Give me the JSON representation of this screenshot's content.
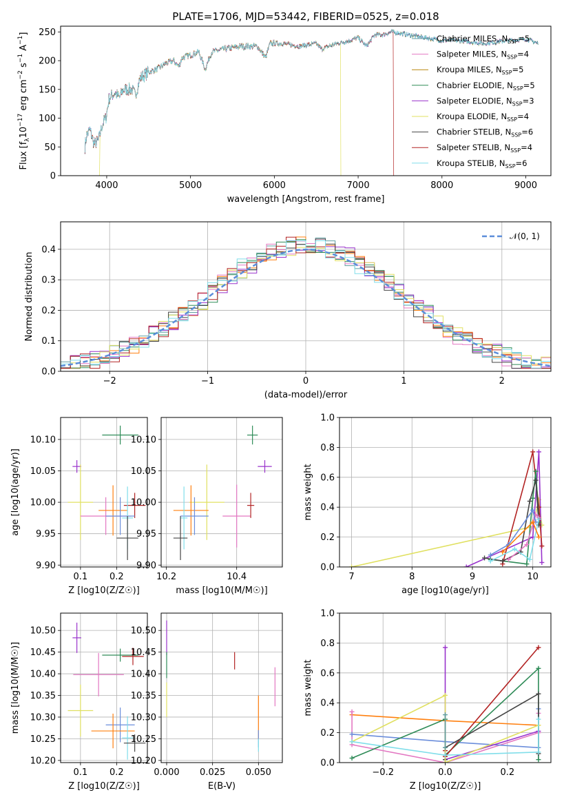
{
  "figure_title": "PLATE=1706, MJD=53442, FIBERID=0525, z=0.018",
  "series_colors": {
    "Chabrier MILES": "#5f9ea0",
    "Salpeter MILES": "#e377c2",
    "Kroupa MILES": "#b8860b",
    "Chabrier ELODIE": "#2e8b57",
    "Salpeter ELODIE": "#9932cc",
    "Kroupa ELODIE": "#e0e060",
    "Chabrier STELIB": "#444444",
    "Salpeter STELIB": "#b22222",
    "Kroupa STELIB": "#80deea"
  },
  "chart_data": [
    {
      "id": "spectrum",
      "type": "line",
      "title": "PLATE=1706, MJD=53442, FIBERID=0525, z=0.018",
      "xlabel": "wavelength [Angstrom, rest frame]",
      "ylabel": "Flux [f_λ 10^-17 erg cm^-2 s^-1 A^-1]",
      "ylabel_main": "Flux [f",
      "ylabel_tail": "10",
      "ylabel_units": " erg cm",
      "ylabel_end": " s",
      "ylabel_a": " A",
      "xlim": [
        3450,
        9300
      ],
      "ylim": [
        0,
        260
      ],
      "xticks": [
        4000,
        5000,
        6000,
        7000,
        8000,
        9000
      ],
      "yticks": [
        0,
        50,
        100,
        150,
        200,
        250
      ],
      "legend_position": "right",
      "legend": [
        {
          "label": "Chabrier MILES, N",
          "n": "=5",
          "color": "#5f9ea0"
        },
        {
          "label": "Salpeter MILES, N",
          "n": "=4",
          "color": "#e377c2"
        },
        {
          "label": "Kroupa MILES, N",
          "n": "=5",
          "color": "#b8860b"
        },
        {
          "label": "Chabrier ELODIE, N",
          "n": "=5",
          "color": "#2e8b57"
        },
        {
          "label": "Salpeter ELODIE, N",
          "n": "=3",
          "color": "#9932cc"
        },
        {
          "label": "Kroupa ELODIE, N",
          "n": "=4",
          "color": "#e0e060"
        },
        {
          "label": "Chabrier STELIB, N",
          "n": "=6",
          "color": "#444444"
        },
        {
          "label": "Salpeter STELIB, N",
          "n": "=4",
          "color": "#b22222"
        },
        {
          "label": "Kroupa STELIB, N",
          "n": "=6",
          "color": "#80deea"
        }
      ],
      "spectrum_anchor_points": [
        [
          3740,
          50
        ],
        [
          3760,
          70
        ],
        [
          3800,
          80
        ],
        [
          3850,
          55
        ],
        [
          3900,
          60
        ],
        [
          3950,
          90
        ],
        [
          3990,
          100
        ],
        [
          4030,
          135
        ],
        [
          4100,
          145
        ],
        [
          4150,
          135
        ],
        [
          4200,
          150
        ],
        [
          4300,
          150
        ],
        [
          4340,
          140
        ],
        [
          4400,
          170
        ],
        [
          4500,
          180
        ],
        [
          4600,
          185
        ],
        [
          4700,
          195
        ],
        [
          4800,
          200
        ],
        [
          4860,
          190
        ],
        [
          4900,
          205
        ],
        [
          5000,
          210
        ],
        [
          5100,
          215
        ],
        [
          5175,
          185
        ],
        [
          5250,
          215
        ],
        [
          5400,
          220
        ],
        [
          5600,
          225
        ],
        [
          5800,
          225
        ],
        [
          5895,
          205
        ],
        [
          5950,
          230
        ],
        [
          6100,
          230
        ],
        [
          6300,
          225
        ],
        [
          6500,
          230
        ],
        [
          6563,
          220
        ],
        [
          6700,
          228
        ],
        [
          6900,
          235
        ],
        [
          7000,
          240
        ],
        [
          7100,
          225
        ],
        [
          7200,
          245
        ],
        [
          7300,
          245
        ],
        [
          7400,
          250
        ],
        [
          7600,
          245
        ],
        [
          7800,
          240
        ],
        [
          8000,
          235
        ],
        [
          8200,
          235
        ],
        [
          8500,
          230
        ],
        [
          8800,
          235
        ],
        [
          9000,
          238
        ],
        [
          9150,
          230
        ]
      ],
      "series_cutoffs": [
        {
          "color": "#e0e060",
          "x_start": 3920,
          "x_end": 6790
        },
        {
          "color": "#b22222",
          "x_start": 3740,
          "x_end": 7420
        }
      ]
    },
    {
      "id": "residuals",
      "type": "histogram",
      "xlabel": "(data-model)/error",
      "ylabel": "Normed distribution",
      "xlim": [
        -2.5,
        2.5
      ],
      "ylim": [
        0,
        0.49
      ],
      "xticks": [
        -2,
        -1,
        0,
        1,
        2
      ],
      "yticks": [
        0,
        0.1,
        0.2,
        0.3,
        0.4
      ],
      "grid": true,
      "legend_position": "top-right",
      "legend": [
        {
          "label": "𝒩(0, 1)",
          "style": "dashed",
          "color": "#5b8dd9"
        }
      ],
      "bin_width": 0.1,
      "series_colors": [
        "#5f9ea0",
        "#e377c2",
        "#ff7f0e",
        "#2e8b57",
        "#9932cc",
        "#e0e060",
        "#444444",
        "#b22222",
        "#80deea"
      ]
    },
    {
      "id": "age-vs-Z",
      "type": "scatter",
      "xlabel": "Z [log10(Z/Z☉)]",
      "ylabel": "age  [log10(age/yr)]",
      "xlim": [
        0.045,
        0.285
      ],
      "ylim": [
        9.897,
        10.135
      ],
      "xticks": [
        0.1,
        0.2
      ],
      "yticks": [
        9.9,
        9.95,
        10.0,
        10.05,
        10.1
      ],
      "grid": true,
      "points": [
        {
          "x": 0.21,
          "y": 10.107,
          "xerr": 0.05,
          "yerr": 0.015,
          "color": "#2e8b57"
        },
        {
          "x": 0.09,
          "y": 10.057,
          "xerr": 0.012,
          "yerr": 0.01,
          "color": "#9932cc"
        },
        {
          "x": 0.1,
          "y": 10.0,
          "xerr": 0.035,
          "yerr": 0.06,
          "color": "#e0e060"
        },
        {
          "x": 0.17,
          "y": 9.978,
          "xerr": 0.07,
          "yerr": 0.03,
          "color": "#e377c2"
        },
        {
          "x": 0.19,
          "y": 9.987,
          "xerr": 0.04,
          "yerr": 0.04,
          "color": "#ff7f0e"
        },
        {
          "x": 0.25,
          "y": 9.995,
          "xerr": 0.03,
          "yerr": 0.02,
          "color": "#b22222"
        },
        {
          "x": 0.21,
          "y": 9.978,
          "xerr": 0.04,
          "yerr": 0.03,
          "color": "#6a8ddb"
        },
        {
          "x": 0.23,
          "y": 9.975,
          "xerr": 0.015,
          "yerr": 0.05,
          "color": "#80deea"
        },
        {
          "x": 0.23,
          "y": 9.943,
          "xerr": 0.03,
          "yerr": 0.035,
          "color": "#444444"
        }
      ]
    },
    {
      "id": "age-vs-mass",
      "type": "scatter",
      "xlabel": "mass [log10(M/M☉)]",
      "xlim": [
        10.185,
        10.53
      ],
      "ylim": [
        9.897,
        10.135
      ],
      "xticks": [
        10.2,
        10.4
      ],
      "yticks": [
        9.9,
        9.95,
        10.0,
        10.05,
        10.1
      ],
      "grid": true,
      "points": [
        {
          "x": 10.445,
          "y": 10.107,
          "xerr": 0.015,
          "yerr": 0.015,
          "color": "#2e8b57"
        },
        {
          "x": 10.48,
          "y": 10.057,
          "xerr": 0.02,
          "yerr": 0.01,
          "color": "#9932cc"
        },
        {
          "x": 10.315,
          "y": 10.0,
          "xerr": 0.05,
          "yerr": 0.06,
          "color": "#e0e060"
        },
        {
          "x": 10.4,
          "y": 9.978,
          "xerr": 0.04,
          "yerr": 0.05,
          "color": "#e377c2"
        },
        {
          "x": 10.27,
          "y": 9.987,
          "xerr": 0.05,
          "yerr": 0.04,
          "color": "#ff7f0e"
        },
        {
          "x": 10.44,
          "y": 9.995,
          "xerr": 0.01,
          "yerr": 0.02,
          "color": "#b22222"
        },
        {
          "x": 10.28,
          "y": 9.978,
          "xerr": 0.04,
          "yerr": 0.03,
          "color": "#6a8ddb"
        },
        {
          "x": 10.25,
          "y": 9.975,
          "xerr": 0.01,
          "yerr": 0.05,
          "color": "#80deea"
        },
        {
          "x": 10.24,
          "y": 9.943,
          "xerr": 0.02,
          "yerr": 0.035,
          "color": "#444444"
        }
      ]
    },
    {
      "id": "mass-weight-vs-age",
      "type": "line",
      "xlabel": "age  [log10(age/yr)]",
      "ylabel": "mass weight",
      "xlim": [
        6.8,
        10.3
      ],
      "ylim": [
        0,
        1
      ],
      "xticks": [
        7,
        8,
        9,
        10
      ],
      "yticks": [
        0,
        0.2,
        0.4,
        0.6,
        0.8,
        1.0
      ],
      "grid": true,
      "series": [
        {
          "color": "#e0e060",
          "x": [
            7.0,
            10.0,
            10.1,
            10.15
          ],
          "y": [
            0.0,
            0.27,
            0.45,
            0.28
          ]
        },
        {
          "color": "#9932cc",
          "x": [
            8.9,
            10.0,
            10.1,
            10.15
          ],
          "y": [
            0.0,
            0.2,
            0.77,
            0.03
          ]
        },
        {
          "color": "#b22222",
          "x": [
            9.5,
            10.0,
            10.1,
            10.15
          ],
          "y": [
            0.02,
            0.77,
            0.4,
            0.14
          ]
        },
        {
          "color": "#2e8b57",
          "x": [
            9.3,
            9.9,
            10.0,
            10.05,
            10.1
          ],
          "y": [
            0.05,
            0.02,
            0.46,
            0.64,
            0.3
          ]
        },
        {
          "color": "#444444",
          "x": [
            9.2,
            9.5,
            9.8,
            9.95,
            10.05,
            10.1
          ],
          "y": [
            0.06,
            0.04,
            0.1,
            0.44,
            0.58,
            0.28
          ]
        },
        {
          "color": "#e377c2",
          "x": [
            9.6,
            9.9,
            10.05,
            10.1
          ],
          "y": [
            0.05,
            0.15,
            0.35,
            0.33
          ]
        },
        {
          "color": "#6a8ddb",
          "x": [
            9.3,
            9.6,
            10.0,
            10.05
          ],
          "y": [
            0.08,
            0.15,
            0.38,
            0.3
          ]
        },
        {
          "color": "#80deea",
          "x": [
            9.3,
            9.7,
            9.95,
            10.1
          ],
          "y": [
            0.04,
            0.12,
            0.05,
            0.32
          ]
        },
        {
          "color": "#ff7f0e",
          "x": [
            9.5,
            10.0,
            10.1
          ],
          "y": [
            0.1,
            0.3,
            0.2
          ]
        }
      ]
    },
    {
      "id": "mass-vs-Z",
      "type": "scatter",
      "xlabel": "Z [log10(Z/Z☉)]",
      "ylabel": "mass [log10(M/M☉)]",
      "xlim": [
        0.045,
        0.285
      ],
      "ylim": [
        10.195,
        10.54
      ],
      "xticks": [
        0.1,
        0.2
      ],
      "yticks": [
        10.2,
        10.25,
        10.3,
        10.35,
        10.4,
        10.45,
        10.5
      ],
      "grid": true,
      "points": [
        {
          "x": 0.09,
          "y": 10.483,
          "xerr": 0.012,
          "yerr": 0.035,
          "color": "#9932cc"
        },
        {
          "x": 0.21,
          "y": 10.443,
          "xerr": 0.05,
          "yerr": 0.015,
          "color": "#2e8b57"
        },
        {
          "x": 0.245,
          "y": 10.44,
          "xerr": 0.03,
          "yerr": 0.02,
          "color": "#b22222"
        },
        {
          "x": 0.15,
          "y": 10.398,
          "xerr": 0.07,
          "yerr": 0.05,
          "color": "#e377c2"
        },
        {
          "x": 0.1,
          "y": 10.315,
          "xerr": 0.035,
          "yerr": 0.06,
          "color": "#e0e060"
        },
        {
          "x": 0.21,
          "y": 10.282,
          "xerr": 0.04,
          "yerr": 0.04,
          "color": "#6a8ddb"
        },
        {
          "x": 0.19,
          "y": 10.268,
          "xerr": 0.06,
          "yerr": 0.04,
          "color": "#ff7f0e"
        },
        {
          "x": 0.23,
          "y": 10.252,
          "xerr": 0.015,
          "yerr": 0.05,
          "color": "#80deea"
        },
        {
          "x": 0.25,
          "y": 10.24,
          "xerr": 0.03,
          "yerr": 0.02,
          "color": "#444444"
        }
      ]
    },
    {
      "id": "mass-vs-EBV",
      "type": "scatter",
      "xlabel": "E(B-V)",
      "xlim": [
        -0.003,
        0.063
      ],
      "ylim": [
        10.195,
        10.54
      ],
      "xticks": [
        0.0,
        0.025,
        0.05
      ],
      "yticks": [
        10.2,
        10.25,
        10.3,
        10.35,
        10.4,
        10.45,
        10.5
      ],
      "grid": true,
      "points": [
        {
          "x": 0.0,
          "y": 10.483,
          "xerr": 0,
          "yerr": 0.04,
          "color": "#9932cc"
        },
        {
          "x": 0.0,
          "y": 10.42,
          "xerr": 0,
          "yerr": 0.03,
          "color": "#2e8b57"
        },
        {
          "x": 0.0,
          "y": 10.34,
          "xerr": 0,
          "yerr": 0.04,
          "color": "#e0e060"
        },
        {
          "x": 0.037,
          "y": 10.43,
          "xerr": 0,
          "yerr": 0.02,
          "color": "#b22222"
        },
        {
          "x": 0.05,
          "y": 10.3,
          "xerr": 0,
          "yerr": 0.05,
          "color": "#ff7f0e"
        },
        {
          "x": 0.05,
          "y": 10.25,
          "xerr": 0,
          "yerr": 0.02,
          "color": "#6a8ddb"
        },
        {
          "x": 0.05,
          "y": 10.235,
          "xerr": 0,
          "yerr": 0.015,
          "color": "#80deea"
        },
        {
          "x": 0.059,
          "y": 10.37,
          "xerr": 0,
          "yerr": 0.045,
          "color": "#e377c2"
        }
      ]
    },
    {
      "id": "mass-weight-vs-Z",
      "type": "line",
      "xlabel": "Z [log10(Z/Z☉)]",
      "ylabel": "mass weight",
      "xlim": [
        -0.34,
        0.34
      ],
      "ylim": [
        0,
        1
      ],
      "xticks": [
        -0.2,
        0.0,
        0.2
      ],
      "yticks": [
        0,
        0.2,
        0.4,
        0.6,
        0.8,
        1.0
      ],
      "grid": true,
      "series": [
        {
          "color": "#ff7f0e",
          "x": [
            -0.3,
            0.0,
            0.3
          ],
          "y": [
            0.32,
            0.28,
            0.25
          ]
        },
        {
          "color": "#e377c2",
          "x": [
            -0.3,
            -0.3,
            0.0,
            0.3,
            0.3
          ],
          "y": [
            0.34,
            0.12,
            0.0,
            0.2,
            0.33
          ]
        },
        {
          "color": "#6a8ddb",
          "x": [
            -0.3,
            0.0,
            0.3,
            0.3
          ],
          "y": [
            0.19,
            0.14,
            0.1,
            0.36
          ]
        },
        {
          "color": "#2e8b57",
          "x": [
            -0.3,
            0.0,
            0.0,
            0.3,
            0.3
          ],
          "y": [
            0.03,
            0.29,
            0.05,
            0.63,
            0.02
          ]
        },
        {
          "color": "#9932cc",
          "x": [
            0.0,
            0.0,
            0.3
          ],
          "y": [
            0.77,
            0.02,
            0.21
          ]
        },
        {
          "color": "#b22222",
          "x": [
            0.0,
            0.0,
            0.3
          ],
          "y": [
            0.08,
            0.04,
            0.77
          ]
        },
        {
          "color": "#444444",
          "x": [
            0.0,
            0.0,
            0.3,
            0.3
          ],
          "y": [
            0.02,
            0.1,
            0.46,
            0.06
          ]
        },
        {
          "color": "#e0e060",
          "x": [
            -0.3,
            0.0,
            0.0,
            0.3
          ],
          "y": [
            0.14,
            0.45,
            0.0,
            0.25
          ]
        },
        {
          "color": "#80deea",
          "x": [
            -0.3,
            0.0,
            0.3,
            0.3
          ],
          "y": [
            0.14,
            0.05,
            0.07,
            0.29
          ]
        },
        {
          "color": "#5f9ea0",
          "x": [
            0.0,
            0.0
          ],
          "y": [
            0.1,
            0.32
          ]
        }
      ]
    }
  ]
}
